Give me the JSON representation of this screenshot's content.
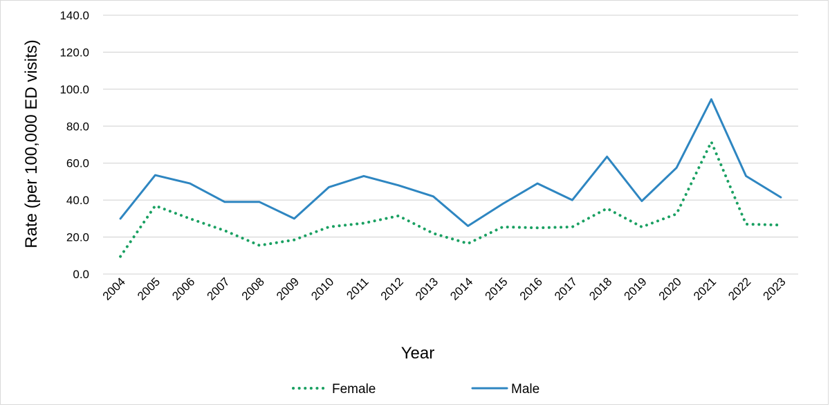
{
  "chart_data": {
    "type": "line",
    "title": "",
    "xlabel": "Year",
    "ylabel": "Rate (per 100,000 ED visits)",
    "ylim": [
      0,
      140
    ],
    "yticks": [
      "0.0",
      "20.0",
      "40.0",
      "60.0",
      "80.0",
      "100.0",
      "120.0",
      "140.0"
    ],
    "categories": [
      "2004",
      "2005",
      "2006",
      "2007",
      "2008",
      "2009",
      "2010",
      "2011",
      "2012",
      "2013",
      "2014",
      "2015",
      "2016",
      "2017",
      "2018",
      "2019",
      "2020",
      "2021",
      "2022",
      "2023"
    ],
    "grid": true,
    "legend_position": "bottom",
    "series": [
      {
        "name": "Female",
        "style": "dotted",
        "color": "#1aa062",
        "values": [
          9.5,
          37.0,
          30.0,
          23.5,
          15.5,
          18.5,
          25.5,
          27.5,
          31.5,
          22.0,
          16.5,
          25.5,
          25.0,
          25.5,
          35.5,
          25.5,
          32.5,
          71.5,
          27.0,
          26.5
        ]
      },
      {
        "name": "Male",
        "style": "solid",
        "color": "#2e86c1",
        "values": [
          30.0,
          53.5,
          49.0,
          39.0,
          39.0,
          30.0,
          47.0,
          53.0,
          48.0,
          42.0,
          26.0,
          38.0,
          49.0,
          40.0,
          63.5,
          39.5,
          57.5,
          94.5,
          53.0,
          41.5
        ]
      }
    ]
  }
}
